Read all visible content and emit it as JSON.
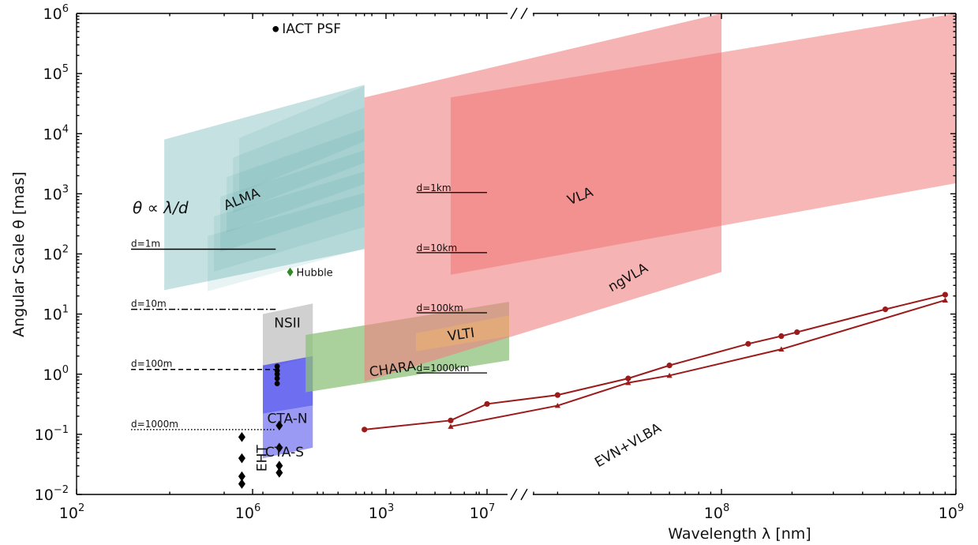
{
  "chart_data": {
    "type": "area",
    "title": "",
    "xlabel": "Wavelength λ  [nm]",
    "ylabel": "Angular Scale θ [mas]",
    "x_scale": "log (broken axis)",
    "y_scale": "log",
    "ylim": [
      0.01,
      1000000
    ],
    "left_panel_xlim": [
      100,
      3000
    ],
    "right_panel_xlim": [
      100000,
      1000000000
    ],
    "grid": false,
    "legend": "none",
    "formula_annotation": "θ ∝ λ/d",
    "x_ticks_left": [
      {
        "value": 100,
        "base": "10",
        "exp": "2"
      },
      {
        "value": 1000,
        "base": "10",
        "exp": "3"
      }
    ],
    "x_ticks_right": [
      {
        "value": 1000000,
        "base": "10",
        "exp": "6"
      },
      {
        "value": 10000000,
        "base": "10",
        "exp": "7"
      },
      {
        "value": 100000000,
        "base": "10",
        "exp": "8"
      },
      {
        "value": 1000000000,
        "base": "10",
        "exp": "9"
      }
    ],
    "y_ticks": [
      {
        "value": 0.01,
        "base": "10",
        "exp": "−2"
      },
      {
        "value": 0.1,
        "base": "10",
        "exp": "−1"
      },
      {
        "value": 1,
        "base": "10",
        "exp": "0"
      },
      {
        "value": 10,
        "base": "10",
        "exp": "1"
      },
      {
        "value": 100,
        "base": "10",
        "exp": "2"
      },
      {
        "value": 1000,
        "base": "10",
        "exp": "3"
      },
      {
        "value": 10000,
        "base": "10",
        "exp": "4"
      },
      {
        "value": 100000,
        "base": "10",
        "exp": "5"
      },
      {
        "value": 1000000,
        "base": "10",
        "exp": "6"
      }
    ],
    "diffraction_lines_optical": [
      {
        "label": "d=1m",
        "x_range": [
          150,
          440
        ],
        "y": 120,
        "style": "solid"
      },
      {
        "label": "d=10m",
        "x_range": [
          150,
          440
        ],
        "y": 12,
        "style": "dashdot"
      },
      {
        "label": "d=100m",
        "x_range": [
          150,
          440
        ],
        "y": 1.2,
        "style": "dashed"
      },
      {
        "label": "d=1000m",
        "x_range": [
          150,
          440
        ],
        "y": 0.12,
        "style": "dotted"
      }
    ],
    "diffraction_lines_radio": [
      {
        "label": "d=1km",
        "x_range": [
          5000000,
          10000000
        ],
        "y": 1050
      },
      {
        "label": "d=10km",
        "x_range": [
          5000000,
          10000000
        ],
        "y": 105
      },
      {
        "label": "d=100km",
        "x_range": [
          5000000,
          10000000
        ],
        "y": 10.5
      },
      {
        "label": "d=1000km",
        "x_range": [
          5000000,
          10000000
        ],
        "y": 1.05
      }
    ],
    "regions": [
      {
        "name": "NSII",
        "color": "#c8c8c8",
        "opacity": 0.85,
        "x_range": [
          400,
          580
        ],
        "y_bottom": [
          1.2,
          2.0
        ],
        "y_top": [
          10,
          15
        ],
        "label_pos": [
          480,
          7
        ]
      },
      {
        "name": "CTA-N",
        "color": "#5555ee",
        "opacity": 0.85,
        "x_range": [
          400,
          580
        ],
        "y_bottom": [
          0.22,
          0.3
        ],
        "y_top": [
          1.4,
          2.0
        ],
        "label_pos": [
          480,
          0.18
        ]
      },
      {
        "name": "CTA-S",
        "color": "#8888f2",
        "opacity": 0.85,
        "x_range": [
          400,
          580
        ],
        "y_bottom": [
          0.04,
          0.06
        ],
        "y_top": [
          0.22,
          0.3
        ],
        "label_pos": [
          470,
          0.05
        ]
      },
      {
        "name": "CHARA",
        "color": "#8dc07a",
        "opacity": 0.75,
        "x_range": [
          550,
          2500
        ],
        "y_bottom": [
          0.5,
          1.7
        ],
        "y_top": [
          4.5,
          16
        ],
        "label_pos": [
          1050,
          1.2
        ]
      },
      {
        "name": "VLTI",
        "color": "#d2e870",
        "opacity": 0.9,
        "x_range": [
          1250,
          2500
        ],
        "y_bottom": [
          2.4,
          4.3
        ],
        "y_top": [
          4.8,
          9.5
        ],
        "label_pos": [
          1750,
          4.5
        ]
      },
      {
        "name": "ALMA",
        "color": "#7fbcbc",
        "opacity": 0.45,
        "x_range": [
          420000,
          3000000
        ],
        "y_bottom": [
          25,
          120
        ],
        "y_top": [
          8000,
          65000
        ],
        "label_pos": [
          900000,
          800
        ]
      },
      {
        "name": "VLA",
        "color": "#f08080",
        "opacity": 0.6,
        "x_range": [
          3000000,
          100000000
        ],
        "y_bottom": [
          0.75,
          50
        ],
        "y_top": [
          40000,
          1000000
        ],
        "label_pos": [
          25000000,
          900
        ]
      },
      {
        "name": "ngVLA",
        "color": "#f07070",
        "opacity": 0.5,
        "x_range": [
          7000000,
          1000000000
        ],
        "y_bottom": [
          45,
          1500
        ],
        "y_top": [
          40000,
          1000000
        ],
        "label_pos": [
          40000000,
          40
        ]
      }
    ],
    "points": [
      {
        "label": "IACT PSF",
        "x": 440,
        "y": 550000,
        "marker": "circle",
        "color": "#000000"
      },
      {
        "label": "Hubble",
        "x": 490,
        "y": 50,
        "marker": "diamond",
        "color": "#2e8b22"
      }
    ],
    "cta_points": [
      {
        "x": 445,
        "y": 1.35
      },
      {
        "x": 445,
        "y": 1.15
      },
      {
        "x": 445,
        "y": 1.0
      },
      {
        "x": 445,
        "y": 0.85
      },
      {
        "x": 445,
        "y": 0.7
      }
    ],
    "series": [
      {
        "name": "EVN+VLBA",
        "color": "#9b1b1b",
        "marker": "circle",
        "x": [
          3000000,
          7000000,
          10000000,
          20000000,
          40000000,
          60000000,
          130000000,
          180000000,
          210000000,
          500000000,
          900000000
        ],
        "y": [
          0.12,
          0.17,
          0.32,
          0.45,
          0.85,
          1.4,
          3.2,
          4.3,
          5.0,
          12,
          21
        ]
      },
      {
        "name": "EVN+VLBA (triangles)",
        "color": "#9b1b1b",
        "marker": "triangle",
        "x": [
          7000000,
          20000000,
          40000000,
          60000000,
          180000000,
          900000000
        ],
        "y": [
          0.135,
          0.3,
          0.72,
          0.95,
          2.6,
          17
        ]
      },
      {
        "name": "EHT",
        "color": "#000000",
        "marker": "diamond",
        "x": [
          900000,
          900000,
          900000,
          900000,
          1300000,
          1300000,
          1300000,
          1300000
        ],
        "y": [
          0.09,
          0.04,
          0.02,
          0.015,
          0.14,
          0.06,
          0.03,
          0.023
        ]
      }
    ],
    "text_labels": [
      {
        "text": "EVN+VLBA",
        "x": 40000000,
        "y": 0.065,
        "rotate": -30
      },
      {
        "text": "EHT",
        "x": 1100000,
        "y": 0.04,
        "rotate": -90
      }
    ]
  }
}
